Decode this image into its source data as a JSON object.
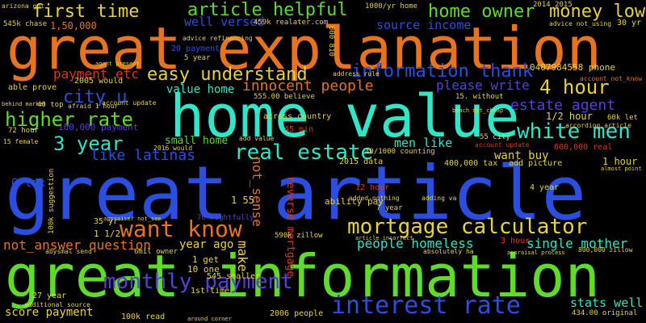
{
  "palette": {
    "background": "#000000",
    "orange": "#e8731e",
    "teal": "#2ee6c8",
    "blue": "#2a4fe0",
    "green": "#5fdc2a",
    "purple": "#5a3fd6",
    "yellow": "#e8d23c",
    "red": "#d83a1a"
  },
  "words": {
    "great_explanation": "great explanation",
    "home_value": "home value",
    "great_article": "great article",
    "great_information": "great information",
    "mortgage_calculator": "mortgage calculator",
    "monthly_payment": "monthly payment",
    "interest_rate": "interest rate",
    "real_estate": "real estate",
    "white_men": "white men",
    "want_know": "want know",
    "first_time": "first time",
    "article_helpful": "article helpful",
    "home_owner": "home owner",
    "money_low": "money low",
    "easy_understand": "easy understand",
    "information_thank": "information thank",
    "four_hour": "4 hour",
    "city_u": "city u",
    "higher_rate": "higher rate",
    "three_year": "3 year",
    "innocent_people": "innocent people",
    "estate_agent": "estate agent",
    "please_write": "please write",
    "like_latinas": "like latinas",
    "payment_etc": "payment etc",
    "well_versed": "well versed",
    "value_home": "value home",
    "men_like": "men like",
    "want_buy": "want buy",
    "not_sense": "not_sense",
    "make": "make",
    "reverse_mortgage": "reverse mortgage",
    "people_homeless": "people homeless",
    "single_mother": "single mother",
    "not_answer_question": "not_answer question",
    "year_ago": "year ago",
    "stats_well": "stats well",
    "score_payment": "score payment",
    "small_home": "small home",
    "zero_tax": "0 tax",
    "source_income": "source income",
    "realater": "459k realater.com",
    "one_lakh": "1,50,000",
    "phone": "0407984558 phone",
    "one_half_hour": "1/2 hour",
    "one_hour": "1 hour",
    "hundred_k_payment": "100,000 payment",
    "six_hundred_k_tax": "600,000 real",
    "four_hundred_k_tax": "400,000 tax",
    "forty_five_min": "45 min",
    "seventy_two_hour": "72 hour",
    "twenty_payment": "20 payment",
    "five_year": "5 year",
    "twenty_seven_year": "27 year",
    "one_get": "1 get",
    "ten_one": "10 one",
    "one_one_half": "1 1/2",
    "one_fifty_five": "1 55",
    "thirty_five_yr": "35 yr",
    "three_hour": "3 hour",
    "four_year": "4 year",
    "seven_year": "7 year",
    "twelve_hour": "12 hour",
    "two_thousand_fifteen": "2014 2015",
    "one_thousand_yr": "1000/yr home",
    "zillow": "590k zillow",
    "eight_hundred_k": "800,000 zillow",
    "hundred_k_read": "100k read",
    "five_fifty_five": "555.00 believe",
    "four_thirty_four": "434.00 original",
    "two_thousand_six": "2006 people",
    "first_time_small": "1st time",
    "rightfully": "70 rightfully",
    "sixty_k": "60k let",
    "smaller": "545 smaller",
    "add_picture": "add picture",
    "ability_pay": "ability pay",
    "across_country": "across country",
    "add_value": "add value",
    "address_rule": "address rule",
    "according_article": "according article",
    "account_update": "account update",
    "agent_present": "agent present",
    "advice_refinancing": "advice refinancing",
    "able_prove": "able prove",
    "arizona_got": "arizona got",
    "five_forty_five_k": "545k chase",
    "forty_top": "40 top",
    "afraid_hour": "afraid 1 hour",
    "mil_owner": "6mil owner",
    "appraiser_not_see": "appraiser not_see",
    "appraisal_process": "appraisal process",
    "added_nothing": "added-nothing",
    "adding_va": "adding va",
    "absolutely_ha": "absolutely ha",
    "abysmal_send": "abysmal send",
    "additional_source": "additional source",
    "twenty_fifteen_data": "2015 data",
    "forty_thousand": "40/1000 counting",
    "eight_hundred_ten": "800 810",
    "two_thousand_five": "2005 would",
    "hundred_k_suggestion": "100k suggestion",
    "fifty_five_city": "55 city",
    "fifteen_without": "15. without",
    "sixteen_would": "2016 would",
    "thirty_yr": "30 yr",
    "advice_not_using": "advice not_using",
    "account_not_know": "account not_know",
    "around_corner": "around corner",
    "female": "15 female",
    "behind_market": "behind market",
    "beach_not_cheap": "beach not_cheap",
    "almost_point": "almost point",
    "article_incorrect": "article incorrect"
  }
}
